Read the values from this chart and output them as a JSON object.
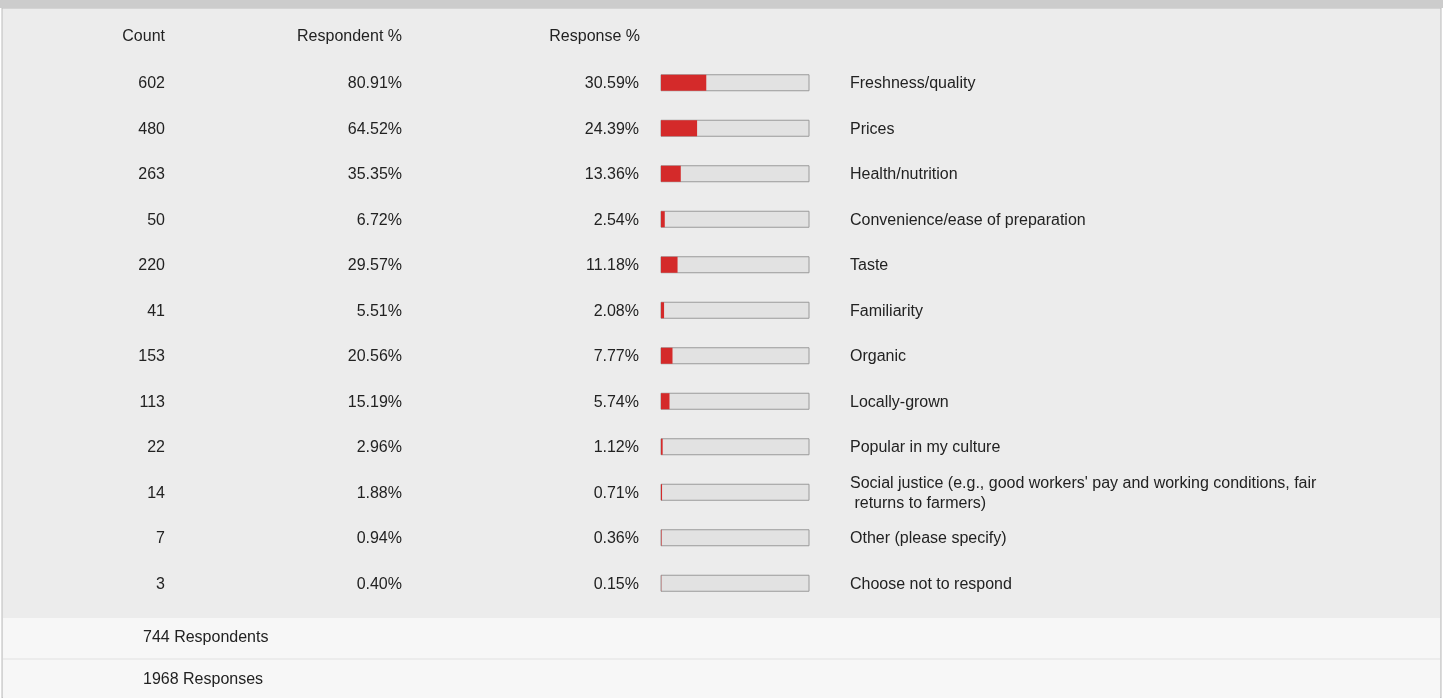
{
  "chart_data": {
    "type": "bar",
    "orientation": "horizontal",
    "categories": [
      "Freshness/quality",
      "Prices",
      "Health/nutrition",
      "Convenience/ease of preparation",
      "Taste",
      "Familiarity",
      "Organic",
      "Locally-grown",
      "Popular in my culture",
      "Social justice (e.g., good workers' pay and working conditions, fair returns to farmers)",
      "Other (please specify)",
      "Choose not to respond"
    ],
    "series": [
      {
        "name": "Response %",
        "color": "#d42a2a",
        "values": [
          30.59,
          24.39,
          13.36,
          2.54,
          11.18,
          2.08,
          7.77,
          5.74,
          1.12,
          0.71,
          0.36,
          0.15
        ],
        "value_labels": [
          "30.59%",
          "24.39%",
          "13.36%",
          "2.54%",
          "11.18%",
          "2.08%",
          "7.77%",
          "5.74%",
          "1.12%",
          "0.71%",
          "0.36%",
          "0.15%"
        ]
      }
    ],
    "xlim": [
      0,
      100
    ],
    "tick_labels": false,
    "annotations": [
      "Count",
      "Respondent %",
      "744 Respondents",
      "1968 Responses",
      "602",
      "80.91%",
      "480",
      "64.52%",
      "263",
      "35.35%",
      "50",
      "6.72%",
      "220",
      "29.57%",
      "41",
      "5.51%",
      "153",
      "20.56%",
      "113",
      "15.19%",
      "22",
      "2.96%",
      "14",
      "1.88%",
      "7",
      "0.94%",
      "3",
      "0.40%"
    ]
  }
}
